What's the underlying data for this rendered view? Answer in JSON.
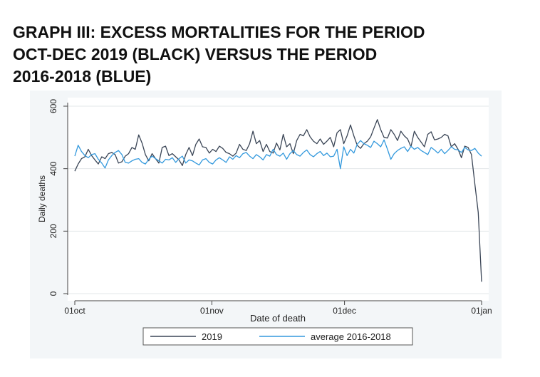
{
  "title_lines": [
    "GRAPH III: EXCESS MORTALITIES FOR THE PERIOD",
    "OCT-DEC 2019 (BLACK) VERSUS THE PERIOD",
    "2016-2018 (BLUE)"
  ],
  "colors": {
    "series_2019": "#3a4556",
    "series_avg": "#3399dd",
    "axis": "#444444",
    "grid": "#e3e7ea"
  },
  "chart_data": {
    "type": "line",
    "xlabel": "Date of death",
    "ylabel": "Daily deaths",
    "x_start": "2019-10-01",
    "x_end": "2020-01-01",
    "xlim": [
      "2019-10-01",
      "2020-01-01"
    ],
    "ylim": [
      0,
      600
    ],
    "x_ticks": [
      {
        "date": "2019-10-01",
        "label": "01oct"
      },
      {
        "date": "2019-11-01",
        "label": "01nov"
      },
      {
        "date": "2019-12-01",
        "label": "01dec"
      },
      {
        "date": "2020-01-01",
        "label": "01jan"
      }
    ],
    "y_ticks": [
      {
        "value": 0,
        "label": "0"
      },
      {
        "value": 200,
        "label": "200"
      },
      {
        "value": 400,
        "label": "400"
      },
      {
        "value": 600,
        "label": "600"
      }
    ],
    "grid": true,
    "legend": "bottom",
    "series": [
      {
        "name": "2019",
        "color": "#3a4556",
        "values": [
          392,
          415,
          432,
          438,
          462,
          442,
          428,
          415,
          438,
          432,
          448,
          452,
          445,
          418,
          422,
          440,
          448,
          468,
          462,
          508,
          482,
          445,
          425,
          448,
          432,
          418,
          468,
          472,
          442,
          448,
          438,
          428,
          410,
          445,
          468,
          442,
          478,
          495,
          470,
          468,
          450,
          462,
          455,
          472,
          465,
          452,
          448,
          440,
          450,
          478,
          462,
          458,
          480,
          520,
          480,
          490,
          455,
          478,
          455,
          450,
          482,
          460,
          510,
          470,
          480,
          448,
          490,
          510,
          505,
          525,
          502,
          488,
          480,
          495,
          478,
          488,
          500,
          470,
          515,
          525,
          480,
          505,
          540,
          505,
          475,
          465,
          480,
          488,
          502,
          530,
          557,
          525,
          500,
          498,
          525,
          510,
          490,
          520,
          505,
          495,
          470,
          520,
          500,
          485,
          470,
          510,
          518,
          492,
          495,
          500,
          510,
          505,
          470,
          480,
          462,
          435,
          472,
          468,
          445,
          350,
          260,
          38
        ]
      },
      {
        "name": "average 2016-2018",
        "color": "#3399dd",
        "values": [
          440,
          475,
          455,
          442,
          435,
          445,
          448,
          430,
          418,
          402,
          428,
          442,
          452,
          458,
          445,
          420,
          418,
          425,
          430,
          432,
          420,
          415,
          430,
          440,
          432,
          425,
          418,
          430,
          428,
          435,
          420,
          432,
          440,
          418,
          428,
          425,
          418,
          412,
          428,
          432,
          420,
          415,
          428,
          435,
          428,
          420,
          438,
          430,
          442,
          435,
          448,
          452,
          440,
          432,
          445,
          438,
          428,
          445,
          440,
          462,
          445,
          440,
          450,
          430,
          448,
          458,
          445,
          440,
          452,
          460,
          445,
          438,
          448,
          455,
          442,
          450,
          438,
          440,
          462,
          400,
          470,
          442,
          462,
          450,
          478,
          490,
          480,
          475,
          468,
          488,
          480,
          470,
          492,
          462,
          430,
          448,
          458,
          465,
          470,
          455,
          472,
          462,
          468,
          458,
          452,
          445,
          468,
          460,
          450,
          462,
          448,
          458,
          470,
          462,
          460,
          452,
          468,
          460,
          458,
          465,
          450,
          440
        ]
      }
    ]
  }
}
